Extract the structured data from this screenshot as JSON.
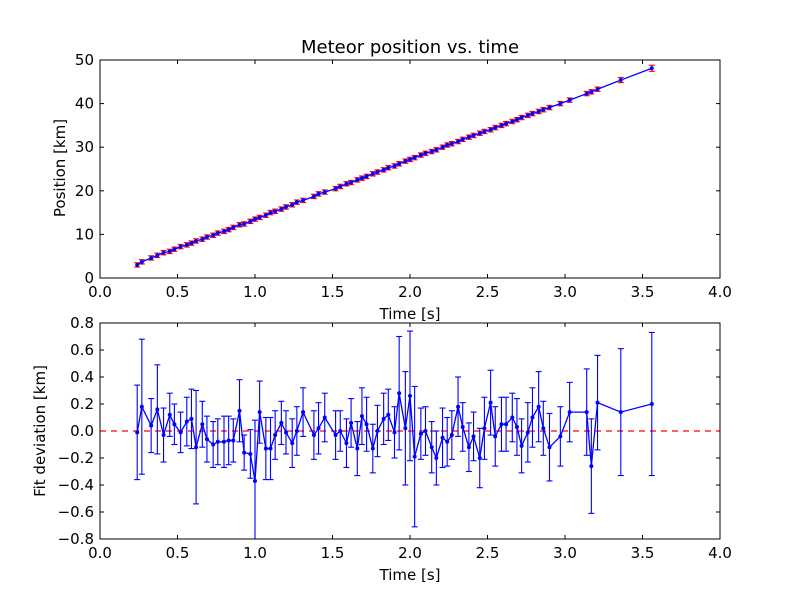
{
  "chart_data": [
    {
      "type": "line",
      "title": "Meteor position vs. time",
      "xlabel": "Time [s]",
      "ylabel": "Position [km]",
      "xlim": [
        0.0,
        4.0
      ],
      "ylim": [
        0,
        50
      ],
      "xticks": [
        "0.0",
        "0.5",
        "1.0",
        "1.5",
        "2.0",
        "2.5",
        "3.0",
        "3.5",
        "4.0"
      ],
      "yticks": [
        "0",
        "10",
        "20",
        "30",
        "40",
        "50"
      ],
      "grid": false,
      "line_color": "#0000ff",
      "errorbar_color": "#ff0000",
      "series": [
        {
          "x": [
            0.24,
            0.27,
            0.33,
            0.37,
            0.41,
            0.45,
            0.48,
            0.52,
            0.56,
            0.59,
            0.62,
            0.66,
            0.69,
            0.73,
            0.76,
            0.8,
            0.83,
            0.86,
            0.9,
            0.93,
            0.97,
            1.0,
            1.03,
            1.07,
            1.1,
            1.13,
            1.17,
            1.2,
            1.24,
            1.27,
            1.31,
            1.38,
            1.41,
            1.45,
            1.52,
            1.55,
            1.59,
            1.62,
            1.66,
            1.69,
            1.72,
            1.76,
            1.79,
            1.83,
            1.86,
            1.9,
            1.93,
            1.97,
            2.0,
            2.03,
            2.07,
            2.1,
            2.14,
            2.17,
            2.21,
            2.24,
            2.27,
            2.31,
            2.34,
            2.38,
            2.41,
            2.45,
            2.48,
            2.52,
            2.55,
            2.59,
            2.62,
            2.66,
            2.69,
            2.72,
            2.76,
            2.79,
            2.83,
            2.86,
            2.9,
            2.97,
            3.03,
            3.14,
            3.17,
            3.21,
            3.36,
            3.56
          ],
          "y": [
            3.0,
            3.7,
            4.6,
            5.2,
            5.8,
            6.1,
            6.6,
            7.2,
            7.6,
            8.0,
            8.5,
            8.9,
            9.4,
            9.8,
            10.3,
            10.7,
            11.1,
            11.6,
            12.2,
            12.4,
            13.0,
            13.5,
            13.9,
            14.4,
            15.0,
            15.3,
            15.8,
            16.3,
            16.8,
            17.4,
            17.8,
            18.7,
            19.3,
            19.7,
            20.5,
            21.0,
            21.6,
            21.9,
            22.5,
            22.9,
            23.3,
            23.9,
            24.3,
            24.8,
            25.3,
            25.7,
            26.2,
            26.8,
            27.2,
            27.6,
            28.2,
            28.6,
            29.0,
            29.4,
            30.0,
            30.5,
            30.8,
            31.3,
            31.8,
            32.3,
            32.7,
            33.2,
            33.6,
            34.0,
            34.5,
            35.0,
            35.4,
            35.9,
            36.3,
            36.8,
            37.3,
            37.7,
            38.2,
            38.6,
            39.1,
            40.0,
            40.8,
            42.3,
            42.7,
            43.3,
            45.4,
            48.1
          ],
          "yerr": [
            0.5,
            0.5,
            0.5,
            0.5,
            0.5,
            0.5,
            0.5,
            0.5,
            0.5,
            0.5,
            0.5,
            0.5,
            0.5,
            0.5,
            0.5,
            0.5,
            0.5,
            0.5,
            0.5,
            0.5,
            0.5,
            0.5,
            0.5,
            0.5,
            0.5,
            0.5,
            0.5,
            0.5,
            0.5,
            0.5,
            0.5,
            0.5,
            0.5,
            0.5,
            0.5,
            0.5,
            0.5,
            0.5,
            0.5,
            0.5,
            0.5,
            0.5,
            0.5,
            0.5,
            0.5,
            0.5,
            0.5,
            0.5,
            0.5,
            0.5,
            0.5,
            0.5,
            0.5,
            0.5,
            0.5,
            0.5,
            0.5,
            0.5,
            0.5,
            0.5,
            0.5,
            0.5,
            0.5,
            0.5,
            0.5,
            0.5,
            0.5,
            0.5,
            0.5,
            0.5,
            0.5,
            0.5,
            0.5,
            0.5,
            0.5,
            0.5,
            0.5,
            0.5,
            0.5,
            0.5,
            0.6,
            0.7
          ]
        }
      ]
    },
    {
      "type": "line",
      "title": "",
      "xlabel": "Time [s]",
      "ylabel": "Fit deviation [km]",
      "xlim": [
        0.0,
        4.0
      ],
      "ylim": [
        -0.8,
        0.8
      ],
      "xticks": [
        "0.0",
        "0.5",
        "1.0",
        "1.5",
        "2.0",
        "2.5",
        "3.0",
        "3.5",
        "4.0"
      ],
      "yticks": [
        "−0.8",
        "−0.6",
        "−0.4",
        "−0.2",
        "0.0",
        "0.2",
        "0.4",
        "0.6",
        "0.8"
      ],
      "grid": false,
      "line_color": "#0000ff",
      "reference_line": {
        "y": 0.0,
        "color": "#ff0000",
        "style": "dashed"
      },
      "series": [
        {
          "x": [
            0.24,
            0.27,
            0.33,
            0.37,
            0.41,
            0.45,
            0.48,
            0.52,
            0.56,
            0.59,
            0.62,
            0.66,
            0.69,
            0.73,
            0.76,
            0.8,
            0.83,
            0.86,
            0.9,
            0.93,
            0.97,
            1.0,
            1.03,
            1.07,
            1.1,
            1.13,
            1.17,
            1.2,
            1.24,
            1.27,
            1.31,
            1.38,
            1.41,
            1.45,
            1.52,
            1.55,
            1.59,
            1.62,
            1.66,
            1.69,
            1.72,
            1.76,
            1.79,
            1.83,
            1.86,
            1.9,
            1.93,
            1.97,
            2.0,
            2.03,
            2.07,
            2.1,
            2.14,
            2.17,
            2.21,
            2.24,
            2.27,
            2.31,
            2.34,
            2.38,
            2.41,
            2.45,
            2.48,
            2.52,
            2.55,
            2.59,
            2.62,
            2.66,
            2.69,
            2.72,
            2.76,
            2.79,
            2.83,
            2.86,
            2.9,
            2.97,
            3.03,
            3.14,
            3.17,
            3.21,
            3.36,
            3.56
          ],
          "y": [
            -0.01,
            0.18,
            0.04,
            0.16,
            -0.03,
            0.12,
            0.05,
            -0.01,
            0.07,
            0.09,
            -0.12,
            0.05,
            -0.06,
            -0.1,
            -0.08,
            -0.08,
            -0.07,
            -0.07,
            0.15,
            -0.16,
            -0.17,
            -0.37,
            0.14,
            -0.13,
            -0.13,
            -0.03,
            0.06,
            -0.01,
            -0.09,
            0.0,
            0.14,
            -0.03,
            0.02,
            0.1,
            -0.03,
            0.0,
            -0.09,
            0.06,
            -0.13,
            0.11,
            0.05,
            -0.13,
            0.0,
            0.09,
            0.12,
            -0.01,
            0.28,
            0.02,
            0.26,
            -0.19,
            -0.02,
            0.0,
            -0.12,
            -0.2,
            -0.05,
            -0.08,
            -0.03,
            0.18,
            0.03,
            -0.12,
            -0.04,
            -0.2,
            0.02,
            0.21,
            -0.04,
            0.05,
            0.05,
            0.1,
            0.03,
            -0.11,
            -0.01,
            0.1,
            0.18,
            0.02,
            -0.12,
            -0.04,
            0.14,
            0.14,
            -0.26,
            0.21,
            0.14,
            0.2
          ],
          "yerr": [
            0.35,
            0.5,
            0.2,
            0.33,
            0.2,
            0.16,
            0.15,
            0.15,
            0.18,
            0.22,
            0.42,
            0.17,
            0.17,
            0.17,
            0.17,
            0.19,
            0.18,
            0.16,
            0.23,
            0.13,
            0.18,
            0.45,
            0.23,
            0.23,
            0.23,
            0.18,
            0.16,
            0.16,
            0.18,
            0.18,
            0.18,
            0.18,
            0.19,
            0.18,
            0.18,
            0.15,
            0.18,
            0.18,
            0.2,
            0.21,
            0.2,
            0.18,
            0.19,
            0.19,
            0.19,
            0.19,
            0.42,
            0.42,
            0.48,
            0.52,
            0.19,
            0.18,
            0.19,
            0.2,
            0.22,
            0.18,
            0.18,
            0.22,
            0.18,
            0.18,
            0.18,
            0.22,
            0.23,
            0.24,
            0.22,
            0.2,
            0.2,
            0.18,
            0.21,
            0.2,
            0.22,
            0.22,
            0.26,
            0.2,
            0.25,
            0.22,
            0.22,
            0.32,
            0.35,
            0.35,
            0.47,
            0.53
          ]
        }
      ]
    }
  ]
}
